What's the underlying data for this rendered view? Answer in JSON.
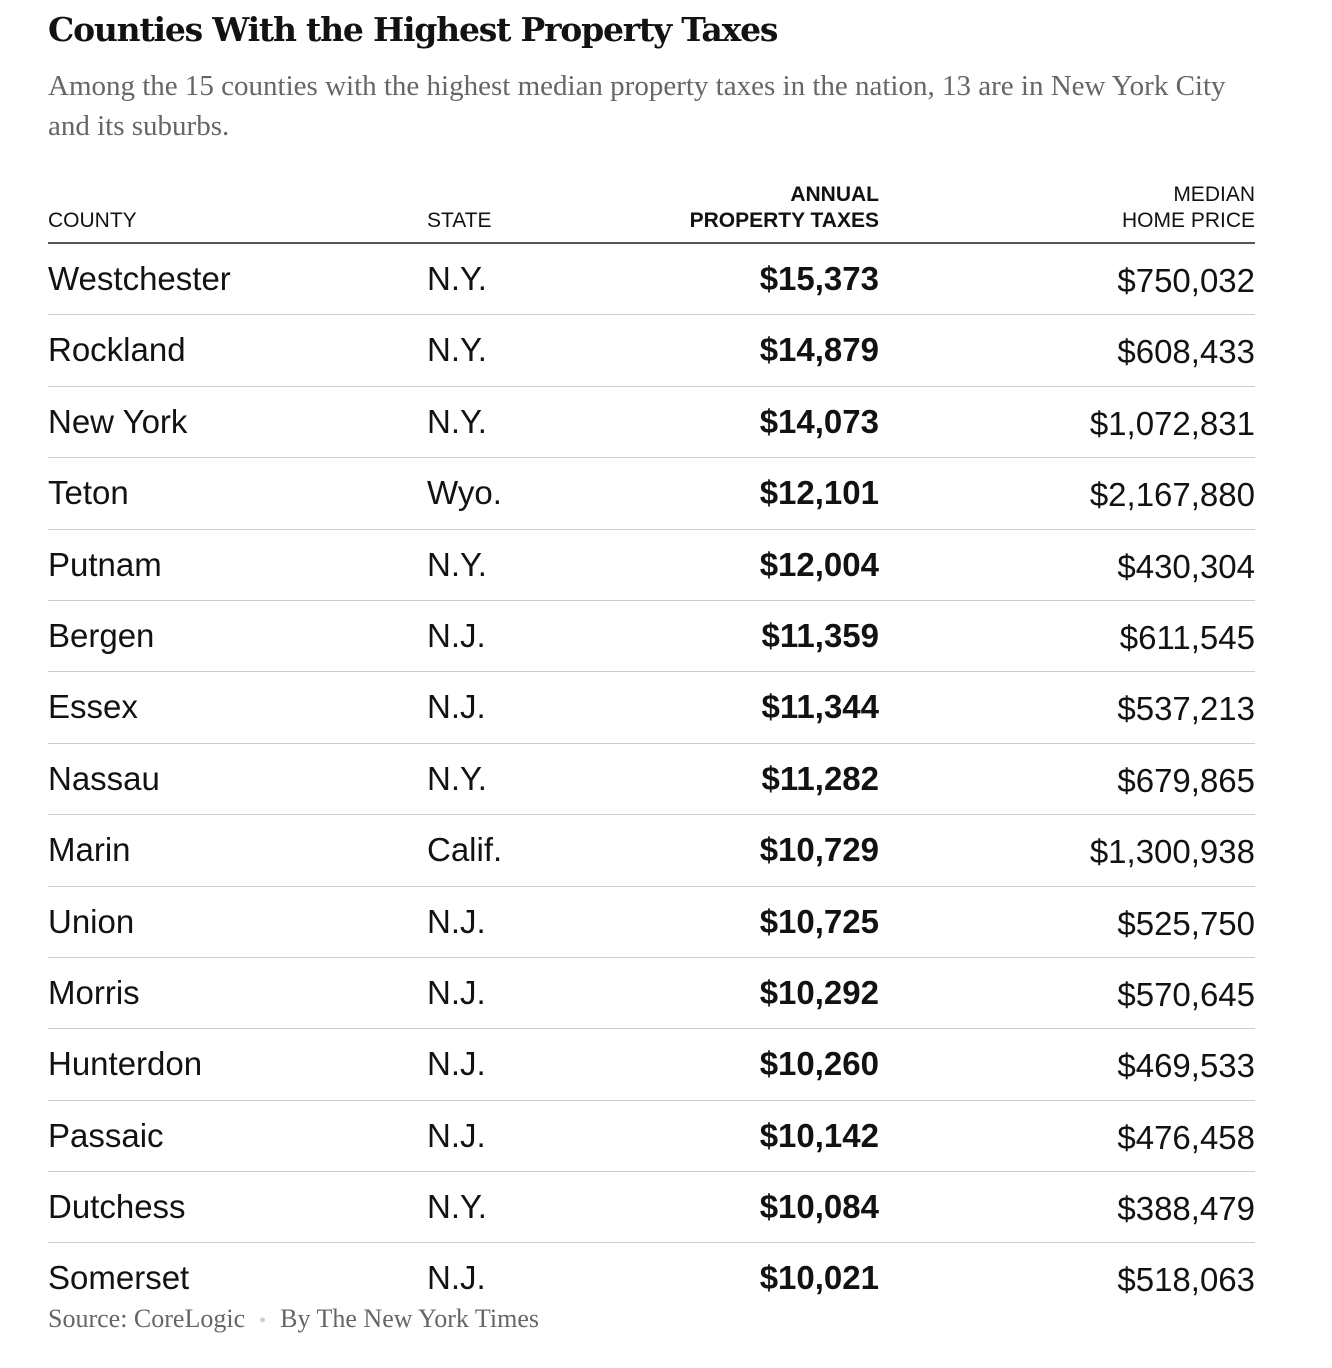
{
  "header": {
    "title": "Counties With the Highest Property Taxes",
    "subtitle": "Among the 15 counties with the highest median property taxes in the nation, 13 are in New York City and its suburbs."
  },
  "chart_data": {
    "type": "table",
    "columns": [
      {
        "line1": "",
        "line2": "COUNTY"
      },
      {
        "line1": "",
        "line2": "STATE"
      },
      {
        "line1": "ANNUAL",
        "line2": "PROPERTY TAXES"
      },
      {
        "line1": "MEDIAN",
        "line2": "HOME PRICE"
      }
    ],
    "rows": [
      [
        "Westchester",
        "N.Y.",
        "$15,373",
        "$750,032"
      ],
      [
        "Rockland",
        "N.Y.",
        "$14,879",
        "$608,433"
      ],
      [
        "New York",
        "N.Y.",
        "$14,073",
        "$1,072,831"
      ],
      [
        "Teton",
        "Wyo.",
        "$12,101",
        "$2,167,880"
      ],
      [
        "Putnam",
        "N.Y.",
        "$12,004",
        "$430,304"
      ],
      [
        "Bergen",
        "N.J.",
        "$11,359",
        "$611,545"
      ],
      [
        "Essex",
        "N.J.",
        "$11,344",
        "$537,213"
      ],
      [
        "Nassau",
        "N.Y.",
        "$11,282",
        "$679,865"
      ],
      [
        "Marin",
        "Calif.",
        "$10,729",
        "$1,300,938"
      ],
      [
        "Union",
        "N.J.",
        "$10,725",
        "$525,750"
      ],
      [
        "Morris",
        "N.J.",
        "$10,292",
        "$570,645"
      ],
      [
        "Hunterdon",
        "N.J.",
        "$10,260",
        "$469,533"
      ],
      [
        "Passaic",
        "N.J.",
        "$10,142",
        "$476,458"
      ],
      [
        "Dutchess",
        "N.Y.",
        "$10,084",
        "$388,479"
      ],
      [
        "Somerset",
        "N.J.",
        "$10,021",
        "$518,063"
      ]
    ]
  },
  "footer": {
    "source": "Source: CoreLogic",
    "separator": "•",
    "credit": "By The New York Times"
  }
}
